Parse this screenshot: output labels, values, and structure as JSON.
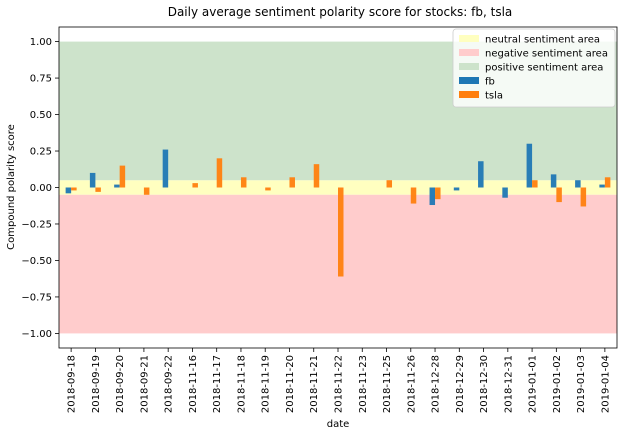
{
  "chart_data": {
    "type": "bar",
    "title": "Daily average sentiment polarity score for stocks: fb, tsla",
    "xlabel": "date",
    "ylabel": "Compound polarity score",
    "ylim": [
      -1.1,
      1.1
    ],
    "yticks": [
      1.0,
      0.75,
      0.5,
      0.25,
      0.0,
      -0.25,
      -0.5,
      -0.75,
      -1.0
    ],
    "ytick_labels": [
      "1.00",
      "0.75",
      "0.50",
      "0.25",
      "0.00",
      "−0.25",
      "−0.50",
      "−0.75",
      "−1.00"
    ],
    "categories": [
      "2018-09-18",
      "2018-09-19",
      "2018-09-20",
      "2018-09-21",
      "2018-09-22",
      "2018-11-16",
      "2018-11-17",
      "2018-11-18",
      "2018-11-19",
      "2018-11-20",
      "2018-11-21",
      "2018-11-22",
      "2018-11-23",
      "2018-11-25",
      "2018-11-26",
      "2018-12-28",
      "2018-12-29",
      "2018-12-30",
      "2018-12-31",
      "2019-01-01",
      "2019-01-02",
      "2019-01-03",
      "2019-01-04"
    ],
    "series": [
      {
        "name": "fb",
        "color": "#1f77b4",
        "values": [
          -0.04,
          0.1,
          0.02,
          null,
          0.26,
          null,
          null,
          null,
          null,
          null,
          null,
          null,
          null,
          null,
          null,
          -0.12,
          -0.02,
          0.18,
          -0.07,
          0.3,
          0.09,
          0.05,
          0.02
        ]
      },
      {
        "name": "tsla",
        "color": "#ff7f0e",
        "values": [
          -0.02,
          -0.03,
          0.15,
          -0.05,
          null,
          0.03,
          0.2,
          0.07,
          -0.02,
          0.07,
          0.16,
          -0.61,
          null,
          0.05,
          -0.11,
          -0.08,
          null,
          null,
          null,
          0.05,
          -0.1,
          -0.13,
          0.07
        ]
      }
    ],
    "areas": [
      {
        "name": "neutral sentiment area",
        "from": -0.05,
        "to": 0.05,
        "color": "#ffffc0"
      },
      {
        "name": "negative sentiment area",
        "from": -1.0,
        "to": -0.05,
        "color": "#ffcccc"
      },
      {
        "name": "positive sentiment area",
        "from": 0.05,
        "to": 1.0,
        "color": "#cde3cb"
      }
    ],
    "legend": {
      "position": "top-right",
      "entries": [
        "neutral sentiment area",
        "negative sentiment area",
        "positive sentiment area",
        "fb",
        "tsla"
      ]
    },
    "grid": false
  }
}
